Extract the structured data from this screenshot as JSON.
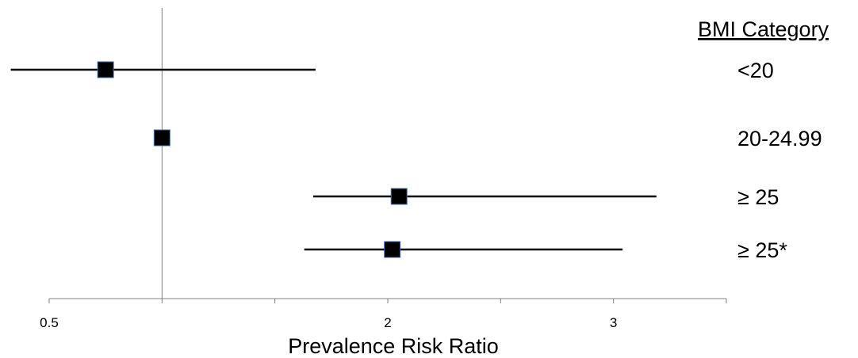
{
  "chart_data": {
    "type": "scatter",
    "subtype": "forest-plot",
    "title": "",
    "xlabel": "Prevalence Risk Ratio",
    "ylabel": "",
    "xlim": [
      0.5,
      3.5
    ],
    "x_ticks": [
      0.5,
      1,
      1.5,
      2,
      2.5,
      3,
      3.5
    ],
    "x_tick_labels": [
      "0.5",
      "",
      "",
      "2",
      "",
      "3",
      ""
    ],
    "reference_line": 1,
    "legend_title": "BMI Category",
    "legend_placement": "right",
    "grid": false,
    "marker": "square",
    "colors": {
      "marker": "#000000",
      "line": "#000000",
      "reference": "#808080",
      "axis": "#808080"
    },
    "series": [
      {
        "name": "<20",
        "estimate": 0.75,
        "ci_low": 0.33,
        "ci_high": 1.68
      },
      {
        "name": "20-24.99",
        "estimate": 1.0,
        "ci_low": null,
        "ci_high": null
      },
      {
        "name": "≥ 25",
        "estimate": 2.05,
        "ci_low": 1.67,
        "ci_high": 3.19
      },
      {
        "name": "≥ 25*",
        "estimate": 2.02,
        "ci_low": 1.63,
        "ci_high": 3.04
      }
    ]
  }
}
